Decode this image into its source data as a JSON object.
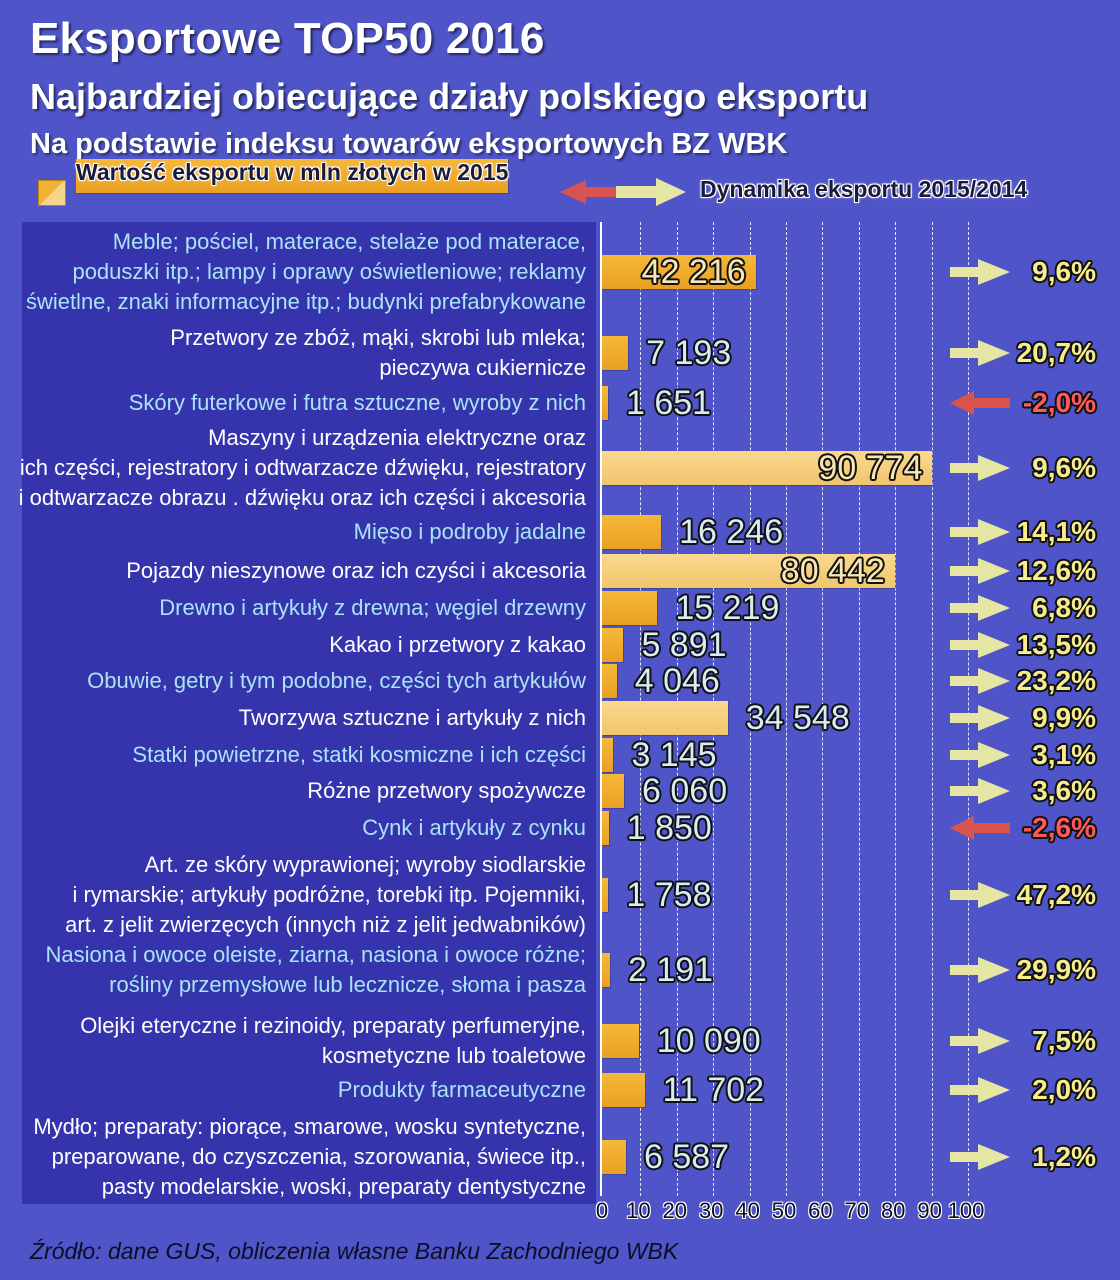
{
  "header": {
    "title": "Eksportowe TOP50 2016",
    "subtitle": "Najbardziej obiecujące działy polskiego eksportu",
    "subtitle2": "Na podstawie indeksu towarów eksportowych BZ WBK"
  },
  "legend": {
    "bar_label": "Wartość eksportu w mln złotych w 2015",
    "dynamics_label": "Dynamika eksportu  2015/2014"
  },
  "colors": {
    "background": "#4f55c8",
    "label_panel": "#3634ad",
    "bar": "#f0a92a",
    "bar_large": "#f6d27f",
    "positive_arrow": "#e6e6a4",
    "negative_arrow": "#d9534f",
    "percent_text": "#f7ec8e",
    "negative_percent_text": "#ff5a5a"
  },
  "chart_data": {
    "type": "bar",
    "orientation": "horizontal",
    "x_ticks": [
      "0",
      "10",
      "20",
      "30",
      "40",
      "50",
      "60",
      "70",
      "80",
      "90",
      "100"
    ],
    "xlim": [
      0,
      100
    ],
    "grid": true,
    "categories": [
      "Meble; pościel, materace, stelaże pod materace,\npoduszki itp.; lampy i oprawy oświetleniowe; reklamy\nświetlne, znaki informacyjne itp.; budynki prefabrykowane",
      "Przetwory ze zbóż, mąki, skrobi lub mleka;\npieczywa cukiernicze",
      "Skóry futerkowe i futra sztuczne, wyroby z nich",
      "Maszyny i urządzenia elektryczne oraz\nich części, rejestratory i odtwarzacze dźwięku, rejestratory\ni odtwarzacze obrazu . dźwięku oraz ich części i akcesoria",
      "Mięso i podroby jadalne",
      "Pojazdy nieszynowe oraz ich czyści i akcesoria",
      "Drewno i artykuły z drewna; węgiel drzewny",
      "Kakao i przetwory z kakao",
      "Obuwie, getry i tym podobne, części tych artykułów",
      "Tworzywa sztuczne i artykuły z nich",
      "Statki powietrzne, statki kosmiczne i ich części",
      "Różne przetwory spożywcze",
      "Cynk i artykuły z cynku",
      "Art. ze skóry wyprawionej; wyroby siodlarskie\ni rymarskie; artykuły podróżne, torebki itp. Pojemniki,\nart. z jelit zwierzęcych (innych niż z jelit jedwabników)",
      "Nasiona i owoce oleiste, ziarna, nasiona i owoce różne;\nrośliny przemysłowe lub lecznicze, słoma i pasza",
      "Olejki eteryczne i rezinoidy, preparaty perfumeryjne,\nkosmetyczne lub toaletowe",
      "Produkty farmaceutyczne",
      "Mydło; preparaty: piorące, smarowe, wosku syntetyczne,\npreparowane, do czyszczenia, szorowania, świece itp.,\npasty modelarskie, woski, preparaty dentystyczne"
    ],
    "values": [
      42216,
      7193,
      1651,
      90774,
      16246,
      80442,
      15219,
      5891,
      4046,
      34548,
      3145,
      6060,
      1850,
      1758,
      2191,
      10090,
      11702,
      6587
    ],
    "value_labels": [
      "42 216",
      "7 193",
      "1 651",
      "90 774",
      "16 246",
      "80 442",
      "15 219",
      "5 891",
      "4 046",
      "34 548",
      "3 145",
      "6 060",
      "1 850",
      "1 758",
      "2 191",
      "10 090",
      "11 702",
      "6 587"
    ],
    "dynamics": [
      9.6,
      20.7,
      -2.0,
      9.6,
      14.1,
      12.6,
      6.8,
      13.5,
      23.2,
      9.9,
      3.1,
      3.6,
      -2.6,
      47.2,
      29.9,
      7.5,
      2.0,
      1.2
    ],
    "dynamics_labels": [
      "9,6%",
      "20,7%",
      "-2,0%",
      "9,6%",
      "14,1%",
      "12,6%",
      "6,8%",
      "13,5%",
      "23,2%",
      "9,9%",
      "3,1%",
      "3,6%",
      "-2,6%",
      "47,2%",
      "29,9%",
      "7,5%",
      "2,0%",
      "1,2%"
    ]
  },
  "source": "Źródło: dane GUS, obliczenia własne Banku Zachodniego WBK"
}
